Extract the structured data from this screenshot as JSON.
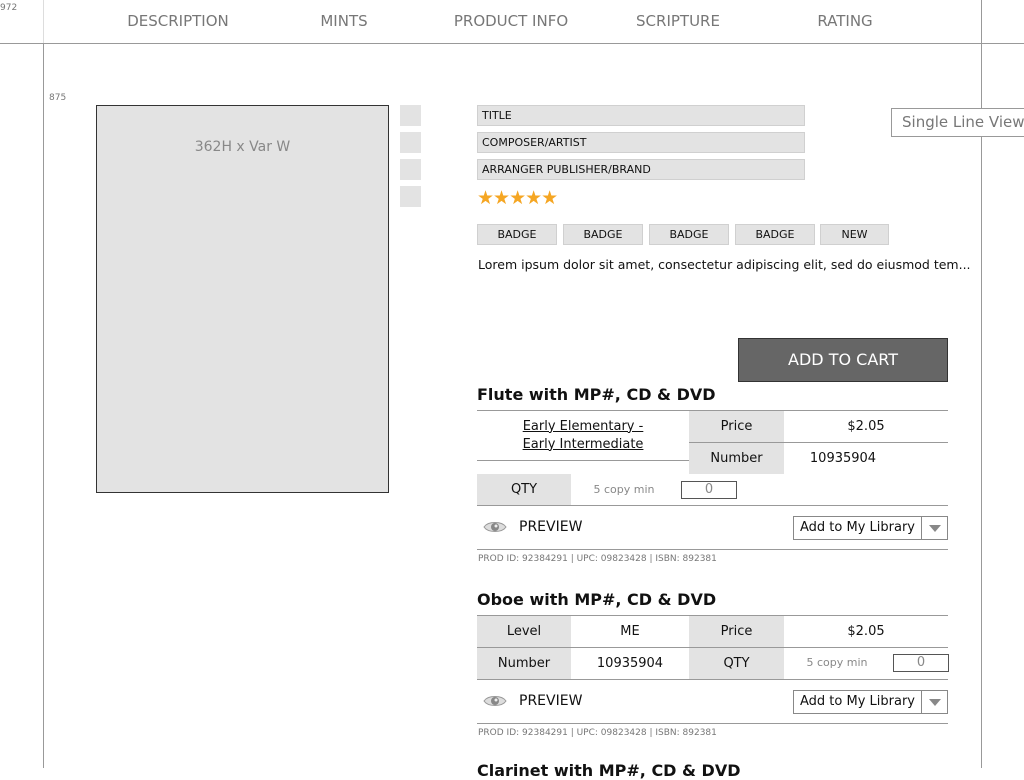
{
  "ruler": {
    "top": "972",
    "side": "875"
  },
  "tabs": [
    "DESCRIPTION",
    "MINTS",
    "PRODUCT INFO",
    "SCRIPTURE",
    "RATING"
  ],
  "image_placeholder": "362H x Var W",
  "fields": {
    "title": "TITLE",
    "composer": "COMPOSER/ARTIST",
    "arranger": "ARRANGER PUBLISHER/BRAND"
  },
  "rating": {
    "stars": 5,
    "max": 5,
    "glyphs": "★★★★★",
    "color": "#f5a623"
  },
  "badges": [
    "BADGE",
    "BADGE",
    "BADGE",
    "BADGE",
    "NEW"
  ],
  "description": "Lorem ipsum dolor sit amet, consectetur adipiscing elit, sed do eiusmod tem...",
  "single_line_view": "Single Line View",
  "add_to_cart": "ADD TO CART",
  "products": [
    {
      "title": "Flute with MP#, CD & DVD",
      "level": "Early Elementary - Early Intermediate",
      "price_label": "Price",
      "price": "$2.05",
      "number_label": "Number",
      "number": "10935904",
      "qty_label": "QTY",
      "qty_min": "5 copy min",
      "qty": "0",
      "preview": "PREVIEW",
      "library": "Add to My Library",
      "ids": "PROD ID: 92384291 | UPC: 09823428 | ISBN: 892381"
    },
    {
      "title": "Oboe with MP#, CD & DVD",
      "level_label": "Level",
      "level": "ME",
      "price_label": "Price",
      "price": "$2.05",
      "number_label": "Number",
      "number": "10935904",
      "qty_label": "QTY",
      "qty_min": "5 copy min",
      "qty": "0",
      "preview": "PREVIEW",
      "library": "Add to My Library",
      "ids": "PROD ID: 92384291 | UPC: 09823428 | ISBN: 892381"
    },
    {
      "title": "Clarinet with MP#, CD & DVD"
    }
  ]
}
